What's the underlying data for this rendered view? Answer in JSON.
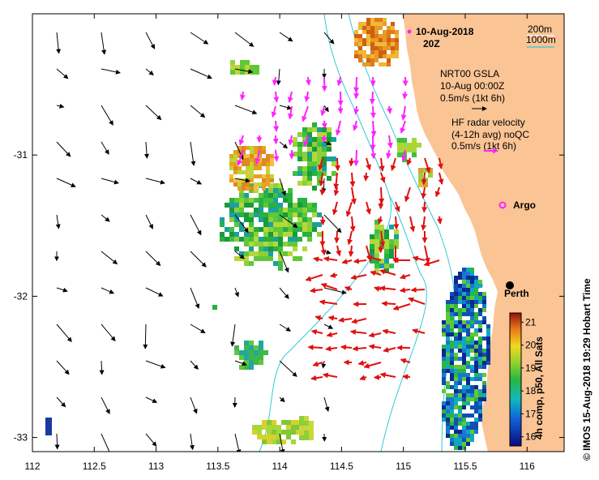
{
  "map": {
    "date": "10-Aug-2018",
    "time": "20Z",
    "depth_contours": [
      "200m",
      "1000m"
    ],
    "depth_contour_colors": [
      "#ffffff",
      "#33c8d8"
    ],
    "gsla": {
      "title": "NRT00 GSLA",
      "date": "10-Aug 00:00Z",
      "scale": "0.5m/s (1kt 6h)",
      "arrow_color": "#000000"
    },
    "hf_radar": {
      "title": "HF radar velocity",
      "avg": "(4-12h avg) noQC",
      "scale": "0.5m/s (1kt 6h)",
      "arrow_color": "#e01010"
    },
    "argo_label": "Argo",
    "argo_color": "#ff33ff",
    "city": "Perth",
    "land_color": "#fbc494",
    "colorbar": {
      "title": "4h comp, p50, All Sats",
      "min": 15.6,
      "max": 21.4,
      "ticks": [
        "21",
        "20",
        "19",
        "18",
        "17",
        "16"
      ]
    },
    "credit": "© IMOS 15-Aug-2018 19:29 Hobart Time",
    "x_axis": {
      "ticks": [
        "112",
        "112.5",
        "113",
        "113.5",
        "114",
        "114.5",
        "115",
        "115.5",
        "116"
      ],
      "min": 112.0,
      "max": 116.3
    },
    "y_axis": {
      "ticks": [
        "-31",
        "-32",
        "-33"
      ],
      "min": -33.1,
      "max": -30.0
    }
  }
}
